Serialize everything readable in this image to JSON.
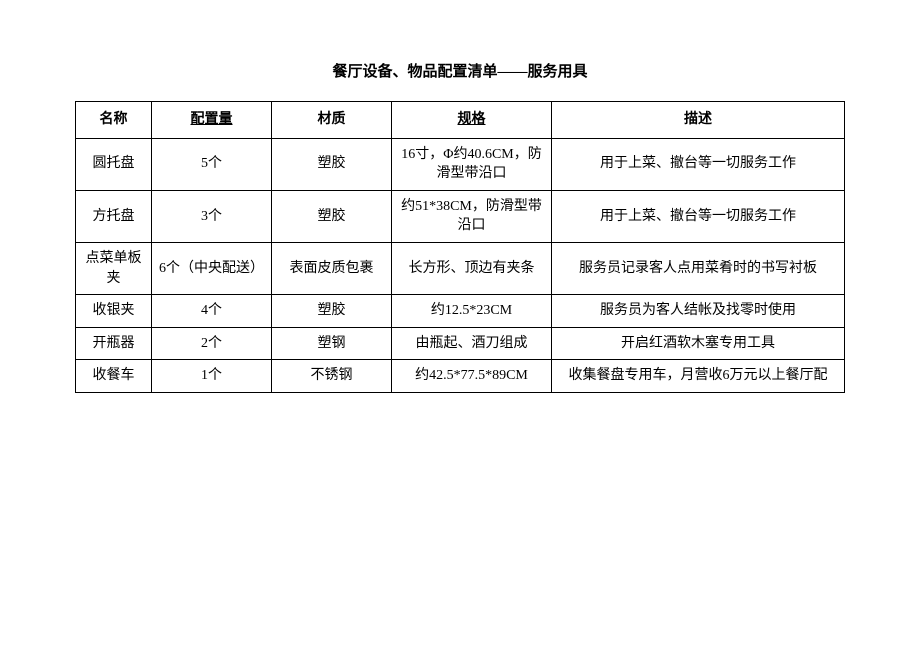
{
  "title": "餐厅设备、物品配置清单——服务用具",
  "table": {
    "columns": [
      {
        "label": "名称",
        "underlined": false
      },
      {
        "label": "配置量",
        "underlined": true
      },
      {
        "label": "材质",
        "underlined": false
      },
      {
        "label": "规格",
        "underlined": true
      },
      {
        "label": "描述",
        "underlined": false
      }
    ],
    "rows": [
      {
        "name": "圆托盘",
        "qty": "5个",
        "material": "塑胶",
        "spec": "16寸，Φ约40.6CM，防滑型带沿口",
        "desc": "用于上菜、撤台等一切服务工作"
      },
      {
        "name": "方托盘",
        "qty": "3个",
        "material": "塑胶",
        "spec": "约51*38CM，防滑型带沿口",
        "desc": "用于上菜、撤台等一切服务工作"
      },
      {
        "name": "点菜单板夹",
        "qty": "6个（中央配送）",
        "material": "表面皮质包裹",
        "spec": "长方形、顶边有夹条",
        "desc": "服务员记录客人点用菜肴时的书写衬板"
      },
      {
        "name": "收银夹",
        "qty": "4个",
        "material": "塑胶",
        "spec": "约12.5*23CM",
        "desc": "服务员为客人结帐及找零时使用"
      },
      {
        "name": "开瓶器",
        "qty": "2个",
        "material": "塑钢",
        "spec": "由瓶起、酒刀组成",
        "desc": "开启红酒软木塞专用工具"
      },
      {
        "name": "收餐车",
        "qty": "1个",
        "material": "不锈钢",
        "spec": "约42.5*77.5*89CM",
        "desc": "收集餐盘专用车，月营收6万元以上餐厅配"
      }
    ]
  },
  "styling": {
    "font_family": "SimSun",
    "title_fontsize": 15,
    "cell_fontsize": 14,
    "border_color": "#000000",
    "text_color": "#000000",
    "background_color": "#ffffff"
  }
}
